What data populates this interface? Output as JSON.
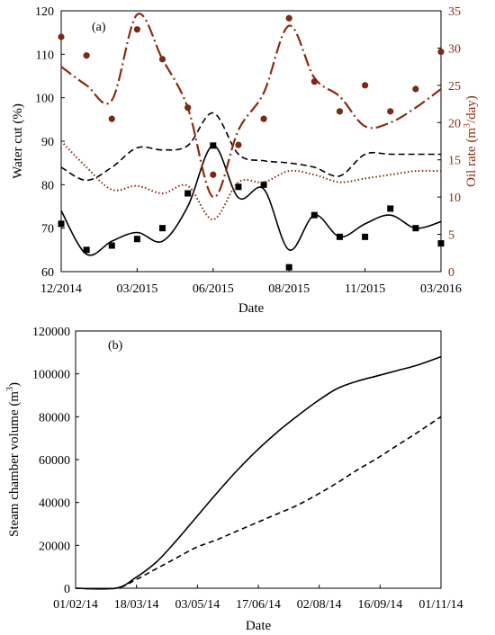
{
  "colors": {
    "black": "#000000",
    "oil": "#8B2A10",
    "oil_dots": "#7A2A14"
  },
  "chart_data": [
    {
      "panel_label": "(a)",
      "type": "line",
      "xlabel": "Date",
      "x_ticks": [
        "12/2014",
        "03/2015",
        "06/2015",
        "08/2015",
        "11/2015",
        "03/2016"
      ],
      "y_left": {
        "label": "Water cut (%)",
        "ylim": [
          60,
          120
        ],
        "ticks": [
          "60",
          "70",
          "80",
          "90",
          "100",
          "110",
          "120"
        ]
      },
      "y_right": {
        "label": "Oil rate (m³/day)",
        "label_main": "Oil rate (m",
        "label_sup": "3",
        "label_end": "/day)",
        "ylim": [
          0,
          35
        ],
        "ticks": [
          "0",
          "5",
          "10",
          "15",
          "20",
          "25",
          "30",
          "35"
        ]
      },
      "series": [
        {
          "axis": "left",
          "style": "solid",
          "x": [
            0,
            1,
            2,
            3,
            4,
            5,
            6,
            7,
            8,
            9,
            10,
            11,
            12,
            13,
            14,
            15
          ],
          "values": [
            74,
            64,
            67,
            69,
            67,
            75,
            89,
            77,
            79,
            65,
            73,
            68,
            71,
            73,
            70,
            71.5
          ]
        },
        {
          "axis": "left",
          "style": "markers-square",
          "x": [
            0,
            1,
            2,
            3,
            4,
            5,
            6,
            7,
            8,
            9,
            10,
            11,
            12,
            13,
            14,
            15
          ],
          "values": [
            71,
            65,
            66,
            67.5,
            70,
            78,
            89,
            79.5,
            80,
            61,
            73,
            68,
            68,
            74.5,
            70,
            66.5
          ]
        },
        {
          "axis": "left",
          "style": "dashed",
          "x": [
            0,
            1,
            2,
            3,
            4,
            5,
            6,
            7,
            8,
            9,
            10,
            11,
            12,
            13,
            14,
            15
          ],
          "values": [
            84,
            81,
            84,
            88.5,
            88,
            89,
            96.5,
            87,
            85.5,
            85,
            84,
            82,
            87,
            87,
            87,
            87
          ]
        },
        {
          "axis": "right",
          "style": "dotted",
          "x": [
            0,
            1,
            2,
            3,
            4,
            5,
            6,
            7,
            8,
            9,
            10,
            11,
            12,
            13,
            14,
            15
          ],
          "values": [
            17.5,
            14,
            11,
            11.5,
            10.5,
            11.5,
            7,
            12,
            12,
            13.5,
            13,
            12,
            12.5,
            13,
            13.5,
            13.5
          ]
        },
        {
          "axis": "right",
          "style": "dash-dot",
          "x": [
            0,
            1,
            2,
            3,
            4,
            5,
            6,
            7,
            8,
            9,
            10,
            11,
            12,
            13,
            14,
            15
          ],
          "values": [
            27.5,
            25,
            23,
            34.5,
            28.5,
            22,
            10,
            19,
            24,
            33,
            26,
            23.5,
            19.5,
            20,
            22,
            24.5
          ]
        },
        {
          "axis": "right",
          "style": "markers-circle",
          "x": [
            0,
            1,
            2,
            3,
            4,
            5,
            6,
            7,
            8,
            9,
            10,
            11,
            12,
            13,
            14,
            15
          ],
          "values": [
            31.5,
            29,
            20.5,
            32.5,
            28.5,
            22,
            13,
            17,
            20.5,
            34,
            25.5,
            21.5,
            25,
            21.5,
            24.5,
            29.5
          ]
        }
      ]
    },
    {
      "panel_label": "(b)",
      "type": "line",
      "xlabel": "Date",
      "ylabel": "Steam chamber volume (m³)",
      "ylabel_main": "Steam chamber volume (m",
      "ylabel_sup": "3",
      "ylabel_end": ")",
      "x_ticks": [
        "01/02/14",
        "18/03/14",
        "03/05/14",
        "17/06/14",
        "02/08/14",
        "16/09/14",
        "01/11/14"
      ],
      "ylim": [
        0,
        120000
      ],
      "y_ticks": [
        "0",
        "20000",
        "40000",
        "60000",
        "80000",
        "100000",
        "120000"
      ],
      "series": [
        {
          "style": "solid",
          "x": [
            0,
            30,
            45,
            60,
            75,
            90,
            105,
            120,
            135,
            150,
            165,
            180,
            195,
            210,
            225,
            240,
            255,
            273
          ],
          "values": [
            0,
            0,
            5000,
            12000,
            22000,
            33000,
            44000,
            54500,
            64000,
            72500,
            80000,
            87000,
            93000,
            96500,
            99000,
            101500,
            104000,
            108000
          ]
        },
        {
          "style": "dashed",
          "x": [
            0,
            30,
            45,
            60,
            75,
            90,
            105,
            120,
            135,
            150,
            165,
            180,
            195,
            210,
            225,
            240,
            255,
            273
          ],
          "values": [
            0,
            0,
            4000,
            9000,
            14000,
            19000,
            22500,
            26500,
            30500,
            34500,
            38500,
            43500,
            49000,
            55000,
            60500,
            66500,
            72500,
            80000
          ]
        }
      ]
    }
  ]
}
